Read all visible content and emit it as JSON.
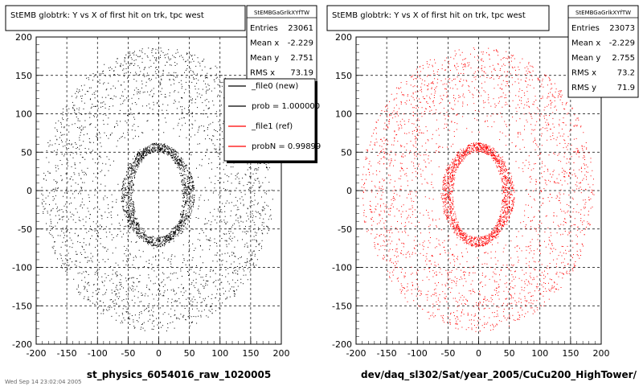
{
  "footer_text": "Wed Sep 14 23:02:04 2005",
  "chart_data": [
    {
      "type": "scatter",
      "title": "StEMB globtrk: Y vs X of first hit on trk, tpc west",
      "xlabel": "st_physics_6054016_raw_1020005",
      "ylabel": "",
      "xlim": [
        -200,
        200
      ],
      "ylim": [
        -200,
        200
      ],
      "grid": true,
      "xticks": [
        "-200",
        "-150",
        "-100",
        "-50",
        "0",
        "50",
        "100",
        "150",
        "200"
      ],
      "yticks": [
        "200",
        "150",
        "100",
        "50",
        "0",
        "-50",
        "-100",
        "-150",
        "-200"
      ],
      "color": "#000000",
      "stats": {
        "name": "StEMBGaGrlkXYfTW",
        "rows": [
          {
            "label": "Entries",
            "value": "23061"
          },
          {
            "label": "Mean x",
            "value": "-2.229"
          },
          {
            "label": "Mean y",
            "value": "2.751"
          },
          {
            "label": "RMS x",
            "value": "73.19"
          }
        ]
      },
      "legend": {
        "placement": "top-right",
        "entries": [
          {
            "label": "_file0 (new)",
            "color": "#000000"
          },
          {
            "label": "prob = 1.000000",
            "color": "#000000"
          },
          {
            "label": "_file1 (ref)",
            "color": "#ff0000"
          },
          {
            "label": "probN = 0.99899",
            "color": "#ff0000"
          }
        ]
      },
      "series": [
        {
          "shape": "annulus",
          "center": [
            -2,
            2
          ],
          "rx": [
            60,
            190
          ],
          "ry": [
            70,
            185
          ],
          "density": 0.55
        },
        {
          "shape": "ring",
          "center": [
            -2,
            -5
          ],
          "rx": [
            40,
            60
          ],
          "ry": [
            55,
            68
          ],
          "density": 1.0
        }
      ]
    },
    {
      "type": "scatter",
      "title": "StEMB globtrk: Y vs X of first hit on trk, tpc west",
      "xlabel": "dev/daq_sl302/Sat/year_2005/CuCu200_HighTower/",
      "ylabel": "",
      "xlim": [
        -200,
        200
      ],
      "ylim": [
        -200,
        200
      ],
      "grid": true,
      "xticks": [
        "-200",
        "-150",
        "-100",
        "-50",
        "0",
        "50",
        "100",
        "150",
        "200"
      ],
      "yticks": [
        "200",
        "150",
        "100",
        "50",
        "0",
        "-50",
        "-100",
        "-150",
        "-200"
      ],
      "color": "#ff0000",
      "stats": {
        "name": "StEMBGaGrlkXYfTW",
        "rows": [
          {
            "label": "Entries",
            "value": "23073"
          },
          {
            "label": "Mean x",
            "value": "-2.229"
          },
          {
            "label": "Mean y",
            "value": "2.755"
          },
          {
            "label": "RMS x",
            "value": "73.2"
          },
          {
            "label": "RMS y",
            "value": "71.9"
          }
        ]
      },
      "series": [
        {
          "shape": "annulus",
          "center": [
            -2,
            2
          ],
          "rx": [
            60,
            190
          ],
          "ry": [
            70,
            185
          ],
          "density": 0.55
        },
        {
          "shape": "ring",
          "center": [
            -2,
            -5
          ],
          "rx": [
            40,
            60
          ],
          "ry": [
            55,
            68
          ],
          "density": 1.0
        }
      ]
    }
  ]
}
